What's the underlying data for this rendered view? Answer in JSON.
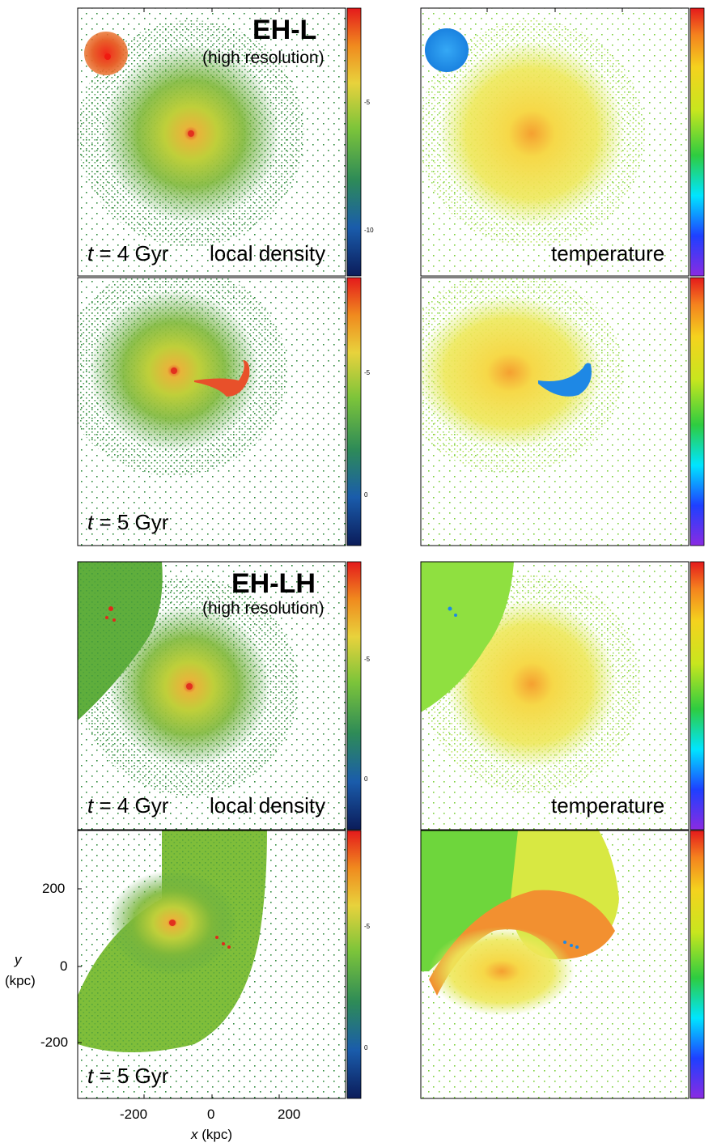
{
  "colors": {
    "scatter_green": "#2e7d32",
    "scatter_light": "#7ccd3a",
    "core_red": "#e03020",
    "cold_blue": "#1e88e5",
    "warm_yellow": "#f2d13a",
    "hot_orange": "#f08a1e"
  },
  "figure": {
    "groups": [
      {
        "model": "EH-L",
        "resolution": "(high resolution)",
        "rows": [
          {
            "time_prefix": "t",
            "time_suffix": " = 4 Gyr",
            "left_label": "local density",
            "right_label": "temperature"
          },
          {
            "time_prefix": "t",
            "time_suffix": " = 5 Gyr",
            "left_label": "",
            "right_label": ""
          }
        ]
      },
      {
        "model": "EH-LH",
        "resolution": "(high resolution)",
        "rows": [
          {
            "time_prefix": "t",
            "time_suffix": " = 4 Gyr",
            "left_label": "local density",
            "right_label": "temperature"
          },
          {
            "time_prefix": "t",
            "time_suffix": " = 5 Gyr",
            "left_label": "",
            "right_label": ""
          }
        ]
      }
    ],
    "axes": {
      "x_ticks": [
        "-200",
        "0",
        "200"
      ],
      "y_ticks": [
        "200",
        "0",
        "-200"
      ],
      "x_label_var": "x",
      "x_label_unit": " (kpc)",
      "y_label_var": "y",
      "y_label_unit": "(kpc)"
    },
    "colorbar_ticks": {
      "density_top_row": [
        "-5",
        "-10"
      ],
      "density_bottom_rows": [
        "-5",
        "0"
      ]
    }
  }
}
